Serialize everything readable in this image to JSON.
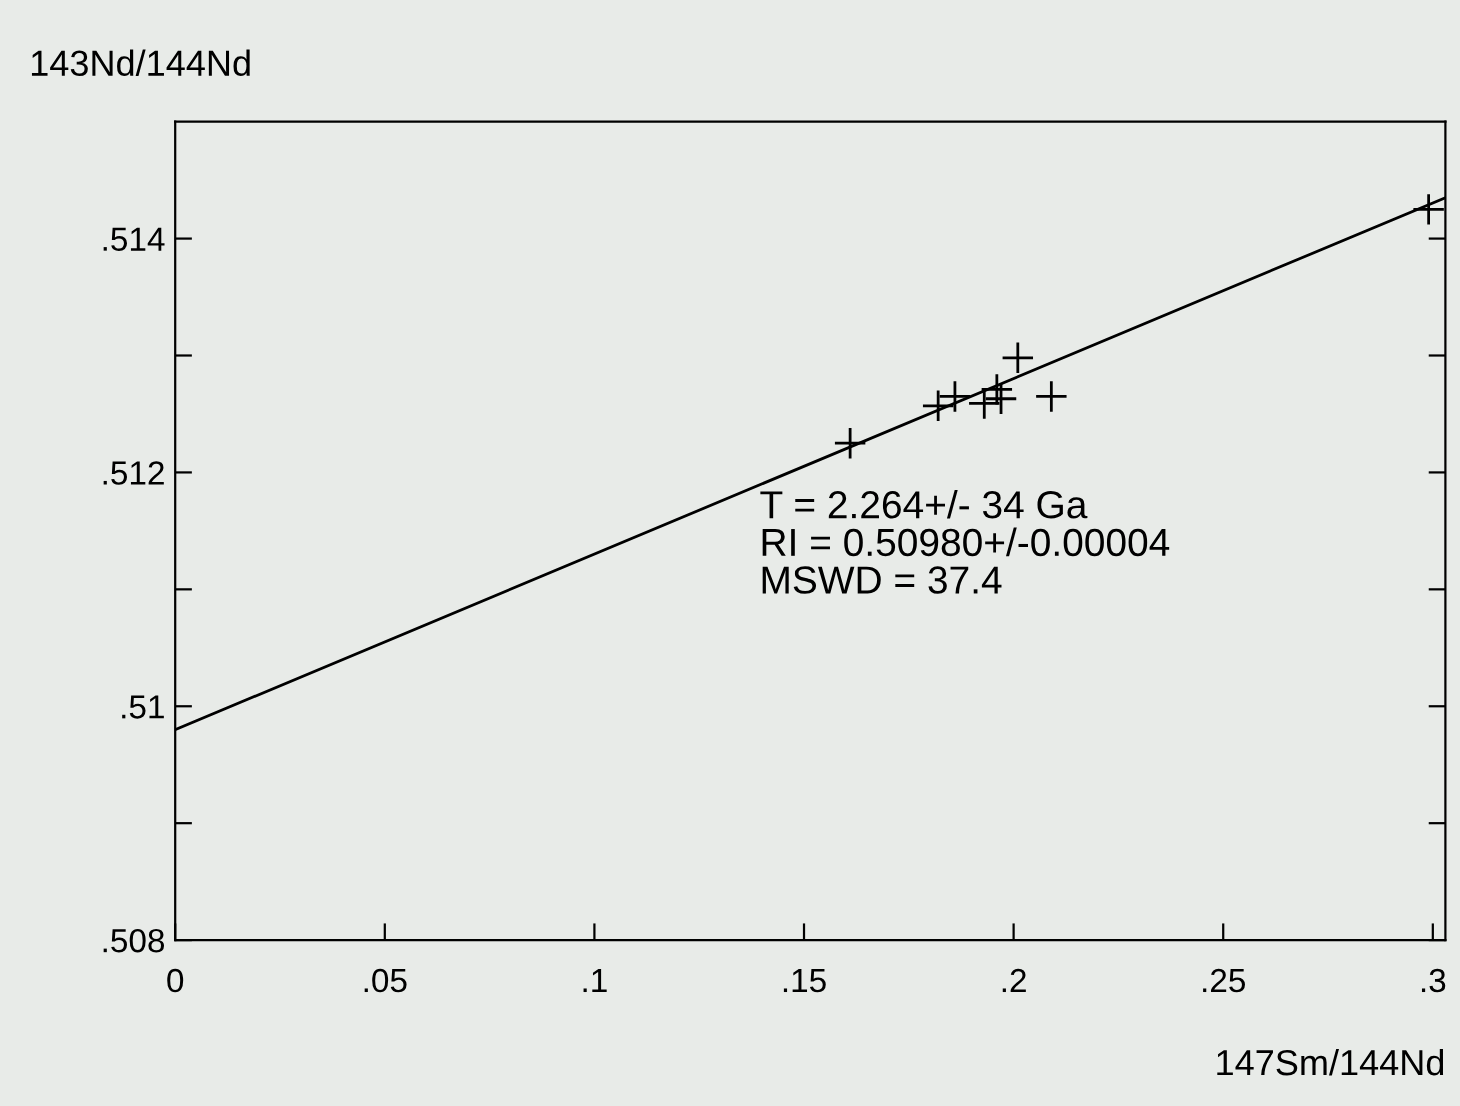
{
  "chart_data": {
    "type": "scatter",
    "xlabel": "147Sm/144Nd",
    "ylabel": "143Nd/144Nd",
    "xlim": [
      0,
      0.303
    ],
    "ylim": [
      0.508,
      0.515
    ],
    "xticks": [
      {
        "value": 0,
        "label": "0"
      },
      {
        "value": 0.05,
        "label": ".05"
      },
      {
        "value": 0.1,
        "label": ".1"
      },
      {
        "value": 0.15,
        "label": ".15"
      },
      {
        "value": 0.2,
        "label": ".2"
      },
      {
        "value": 0.25,
        "label": ".25"
      },
      {
        "value": 0.3,
        "label": ".3"
      }
    ],
    "yticks": [
      {
        "value": 0.508,
        "label": ".508"
      },
      {
        "value": 0.509,
        "label": null
      },
      {
        "value": 0.51,
        "label": ".51"
      },
      {
        "value": 0.511,
        "label": null
      },
      {
        "value": 0.512,
        "label": ".512"
      },
      {
        "value": 0.513,
        "label": null
      },
      {
        "value": 0.514,
        "label": ".514"
      }
    ],
    "grid": false,
    "marker": "cross",
    "annotations": [
      "T = 2.264+/- 34 Ga\nRI = 0.50980+/-0.00004\nMSWD = 37.4"
    ],
    "series": [
      {
        "color": "#000000",
        "x": [
          0.161,
          0.182,
          0.186,
          0.193,
          0.196,
          0.197,
          0.201,
          0.209,
          0.299
        ],
        "values": [
          0.51225,
          0.51257,
          0.51265,
          0.51259,
          0.51271,
          0.51263,
          0.51298,
          0.51265,
          0.51425
        ]
      },
      {
        "type": "line",
        "marker": "none",
        "color": "#000000",
        "x": [
          0,
          0.303
        ],
        "values": [
          0.5098,
          0.51435
        ]
      }
    ]
  }
}
